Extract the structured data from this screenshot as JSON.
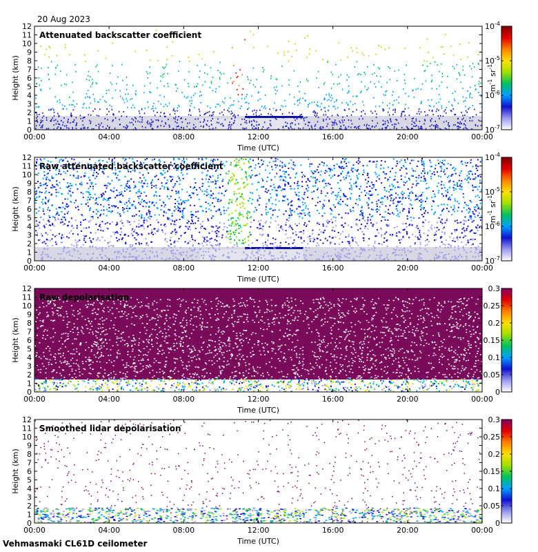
{
  "date": "20 Aug 2023",
  "site": "Vehmasmaki CL61D ceilometer",
  "chart_data": [
    {
      "type": "heatmap",
      "title": "Attenuated backscatter coefficient",
      "xlabel": "Time (UTC)",
      "ylabel": "Height (km)",
      "x_ticks": [
        "00:00",
        "04:00",
        "08:00",
        "12:00",
        "16:00",
        "20:00",
        "00:00"
      ],
      "y_ticks": [
        "0",
        "1",
        "2",
        "3",
        "4",
        "5",
        "6",
        "7",
        "8",
        "9",
        "10",
        "11",
        "12"
      ],
      "ylim": [
        0,
        12
      ],
      "colorbar": {
        "scale": "log",
        "ticks": [
          "10",
          "10",
          "10",
          "10"
        ],
        "exponents": [
          "-4",
          "-5",
          "-6",
          "-7"
        ],
        "unit": "m",
        "unit_exp": "-1",
        "unit2": " sr",
        "unit2_exp": "-1"
      },
      "colors": [
        "#ffffff",
        "#9a9af0",
        "#1010d0",
        "#00a0ff",
        "#00c060",
        "#a0e000",
        "#ffe000",
        "#ff8000",
        "#e00000",
        "#800000"
      ]
    },
    {
      "type": "heatmap",
      "title": "Raw attenuated backscatter coefficient",
      "xlabel": "Time (UTC)",
      "ylabel": "Height (km)",
      "x_ticks": [
        "00:00",
        "04:00",
        "08:00",
        "12:00",
        "16:00",
        "20:00",
        "00:00"
      ],
      "y_ticks": [
        "0",
        "1",
        "2",
        "3",
        "4",
        "5",
        "6",
        "7",
        "8",
        "9",
        "10",
        "11",
        "12"
      ],
      "ylim": [
        0,
        12
      ],
      "colorbar": {
        "scale": "log",
        "ticks": [
          "10",
          "10",
          "10",
          "10"
        ],
        "exponents": [
          "-4",
          "-5",
          "-6",
          "-7"
        ],
        "unit": "m",
        "unit_exp": "-1",
        "unit2": " sr",
        "unit2_exp": "-1"
      },
      "colors": [
        "#ffffff",
        "#9a9af0",
        "#1010d0",
        "#00a0ff",
        "#00c060",
        "#a0e000",
        "#ffe000",
        "#ff8000",
        "#e00000",
        "#800000"
      ]
    },
    {
      "type": "heatmap",
      "title": "Raw depolarisation",
      "xlabel": "Time (UTC)",
      "ylabel": "Height (km)",
      "x_ticks": [
        "00:00",
        "04:00",
        "08:00",
        "12:00",
        "16:00",
        "20:00",
        "00:00"
      ],
      "y_ticks": [
        "0",
        "1",
        "2",
        "3",
        "4",
        "5",
        "6",
        "7",
        "8",
        "9",
        "10",
        "11",
        "12"
      ],
      "ylim": [
        0,
        12
      ],
      "colorbar": {
        "scale": "linear",
        "ticks": [
          "0.3",
          "0.25",
          "0.2",
          "0.15",
          "0.1",
          "0.05",
          "0"
        ]
      },
      "colors": [
        "#ffffff",
        "#9a9af0",
        "#1010d0",
        "#00a0ff",
        "#00c060",
        "#a0e000",
        "#ffe000",
        "#ff8000",
        "#e00000",
        "#800060"
      ]
    },
    {
      "type": "heatmap",
      "title": "Smoothed lidar depolarisation",
      "xlabel": "Time (UTC)",
      "ylabel": "Height (km)",
      "x_ticks": [
        "00:00",
        "04:00",
        "08:00",
        "12:00",
        "16:00",
        "20:00",
        "00:00"
      ],
      "y_ticks": [
        "0",
        "1",
        "2",
        "3",
        "4",
        "5",
        "6",
        "7",
        "8",
        "9",
        "10",
        "11",
        "12"
      ],
      "ylim": [
        0,
        12
      ],
      "colorbar": {
        "scale": "linear",
        "ticks": [
          "0.3",
          "0.25",
          "0.2",
          "0.15",
          "0.1",
          "0.05",
          "0"
        ]
      },
      "colors": [
        "#ffffff",
        "#9a9af0",
        "#1010d0",
        "#00a0ff",
        "#00c060",
        "#a0e000",
        "#ffe000",
        "#ff8000",
        "#e00000",
        "#800060"
      ]
    }
  ]
}
